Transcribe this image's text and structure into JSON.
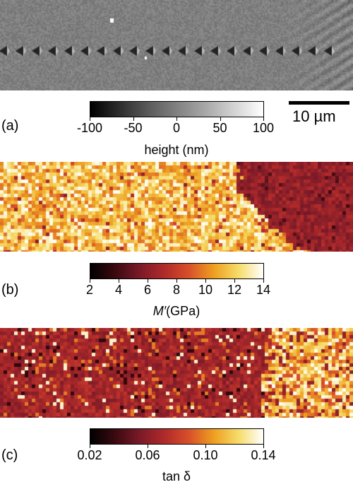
{
  "panels": [
    {
      "id": "a",
      "label": "(a)",
      "colorbar": {
        "ticks": [
          "-100",
          "-50",
          "0",
          "50",
          "100"
        ],
        "title": "height (nm)",
        "gradient": [
          "#000000",
          "#5a5a5a",
          "#a8a8a8",
          "#ffffff"
        ]
      },
      "scalebar": "10 µm"
    },
    {
      "id": "b",
      "label": "(b)",
      "colorbar": {
        "ticks": [
          "2",
          "4",
          "6",
          "8",
          "10",
          "12",
          "14"
        ],
        "title_italic": "M′",
        "title_rest": "(GPa)",
        "gradient": [
          "#000000",
          "#3a0a10",
          "#7a1a28",
          "#b02a2a",
          "#d8502a",
          "#eea020",
          "#f6dc6a",
          "#ffffff"
        ]
      }
    },
    {
      "id": "c",
      "label": "(c)",
      "colorbar": {
        "ticks": [
          "0.02",
          "0.06",
          "0.10",
          "0.14"
        ],
        "title": "tan δ",
        "gradient": [
          "#000000",
          "#3a0a10",
          "#7a1a28",
          "#b02a2a",
          "#d8502a",
          "#eea020",
          "#f6dc6a",
          "#ffffff"
        ]
      }
    }
  ]
}
